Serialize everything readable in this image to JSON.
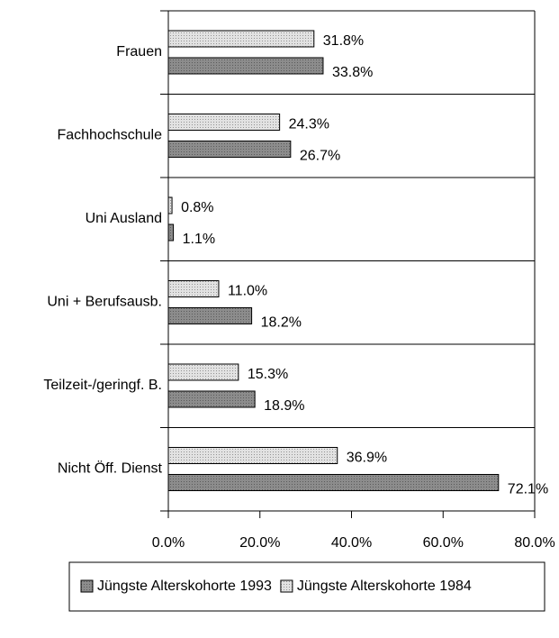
{
  "chart_data": {
    "type": "barh",
    "categories": [
      "Frauen",
      "Fachhochschule",
      "Uni Ausland",
      "Uni + Berufsausb.",
      "Teilzeit-/geringf. B.",
      "Nicht Öff. Dienst"
    ],
    "series": [
      {
        "name": "Jüngste Alterskohorte 1993",
        "color": "#8c8c8c",
        "values": [
          33.8,
          26.7,
          1.1,
          18.2,
          18.9,
          72.1
        ],
        "value_labels": [
          "33.8%",
          "26.7%",
          "1.1%",
          "18.2%",
          "18.9%",
          "72.1%"
        ]
      },
      {
        "name": "Jüngste Alterskohorte 1984",
        "color": "#e2e2e2",
        "values": [
          31.8,
          24.3,
          0.8,
          11.0,
          15.3,
          36.9
        ],
        "value_labels": [
          "31.8%",
          "24.3%",
          "0.8%",
          "11.0%",
          "15.3%",
          "36.9%"
        ]
      }
    ],
    "xlim": [
      0,
      80
    ],
    "xticks": [
      {
        "value": 0,
        "label": "0.0%"
      },
      {
        "value": 20,
        "label": "20.0%"
      },
      {
        "value": 40,
        "label": "40.0%"
      },
      {
        "value": 60,
        "label": "60.0%"
      },
      {
        "value": 80,
        "label": "80.0%"
      }
    ],
    "legend": "bottom"
  }
}
